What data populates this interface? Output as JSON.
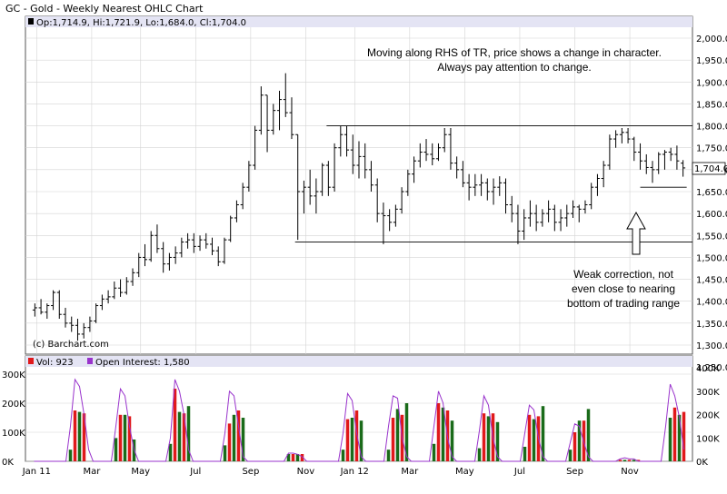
{
  "header": {
    "title": "GC - Gold - Weekly Nearest OHLC Chart"
  },
  "price_panel": {
    "ohlc_label": "Op:1,714.9, Hi:1,721.9, Lo:1,684.0, Cl:1,704.0",
    "last_price": "1,704.0",
    "copyright": "(c) Barchart.com",
    "y_ticks": [
      "2,000.0",
      "1,950.0",
      "1,900.0",
      "1,850.0",
      "1,800.0",
      "1,750.0",
      "1,700.0",
      "1,650.0",
      "1,600.0",
      "1,550.0",
      "1,500.0",
      "1,450.0",
      "1,400.0",
      "1,350.0",
      "1,300.0",
      "1,250.0"
    ]
  },
  "volume_panel": {
    "vol_label": "Vol: 923",
    "oi_label": "Open Interest: 1,580",
    "left_ticks": [
      "300K",
      "200K",
      "100K",
      "0K"
    ],
    "right_ticks": [
      "400K",
      "300K",
      "200K",
      "100K",
      "0K"
    ]
  },
  "x_ticks": [
    "Jan 11",
    "Mar",
    "May",
    "Jul",
    "Sep",
    "Nov",
    "Jan 12",
    "Mar",
    "May",
    "Jul",
    "Sep",
    "Nov"
  ],
  "annotations": {
    "top_line1": "Moving along RHS of TR, price shows a change in character.",
    "top_line2": "Always pay attention to change.",
    "bottom_line1": "Weak correction, not",
    "bottom_line2": "even close to nearing",
    "bottom_line3": "bottom of trading range"
  },
  "colors": {
    "up_volume": "#1a6b1a",
    "down_volume": "#e0191b",
    "open_interest": "#9933cc",
    "panel_header": "#e4e4f4",
    "grid": "#d4d4d4"
  },
  "chart_data": [
    {
      "type": "ohlc",
      "title": "GC - Gold - Weekly Nearest OHLC Chart",
      "ylim": [
        1250,
        2050
      ],
      "x_labels": [
        "Jan 11",
        "Mar",
        "May",
        "Jul",
        "Sep",
        "Nov",
        "Jan 12",
        "Mar",
        "May",
        "Jul",
        "Sep",
        "Nov"
      ],
      "ohlc": [
        [
          1380,
          1395,
          1365,
          1385
        ],
        [
          1385,
          1405,
          1370,
          1375
        ],
        [
          1375,
          1395,
          1360,
          1390
        ],
        [
          1390,
          1425,
          1380,
          1420
        ],
        [
          1420,
          1425,
          1360,
          1370
        ],
        [
          1370,
          1385,
          1340,
          1350
        ],
        [
          1350,
          1365,
          1330,
          1345
        ],
        [
          1345,
          1360,
          1310,
          1325
        ],
        [
          1325,
          1350,
          1315,
          1340
        ],
        [
          1340,
          1365,
          1330,
          1355
        ],
        [
          1355,
          1395,
          1350,
          1390
        ],
        [
          1390,
          1415,
          1380,
          1405
        ],
        [
          1405,
          1425,
          1395,
          1410
        ],
        [
          1410,
          1445,
          1405,
          1430
        ],
        [
          1430,
          1450,
          1410,
          1420
        ],
        [
          1420,
          1455,
          1415,
          1445
        ],
        [
          1445,
          1475,
          1435,
          1465
        ],
        [
          1465,
          1510,
          1455,
          1500
        ],
        [
          1500,
          1530,
          1480,
          1495
        ],
        [
          1495,
          1560,
          1490,
          1550
        ],
        [
          1550,
          1575,
          1510,
          1520
        ],
        [
          1520,
          1535,
          1465,
          1485
        ],
        [
          1485,
          1510,
          1470,
          1500
        ],
        [
          1500,
          1525,
          1485,
          1510
        ],
        [
          1510,
          1545,
          1500,
          1535
        ],
        [
          1535,
          1555,
          1520,
          1540
        ],
        [
          1540,
          1555,
          1510,
          1525
        ],
        [
          1525,
          1550,
          1515,
          1540
        ],
        [
          1540,
          1555,
          1520,
          1530
        ],
        [
          1530,
          1545,
          1505,
          1515
        ],
        [
          1515,
          1525,
          1480,
          1490
        ],
        [
          1490,
          1545,
          1485,
          1540
        ],
        [
          1540,
          1595,
          1535,
          1590
        ],
        [
          1590,
          1630,
          1580,
          1620
        ],
        [
          1620,
          1670,
          1610,
          1660
        ],
        [
          1660,
          1720,
          1650,
          1710
        ],
        [
          1710,
          1800,
          1700,
          1790
        ],
        [
          1790,
          1890,
          1780,
          1870
        ],
        [
          1870,
          1870,
          1740,
          1790
        ],
        [
          1790,
          1850,
          1780,
          1835
        ],
        [
          1835,
          1880,
          1790,
          1860
        ],
        [
          1860,
          1920,
          1820,
          1830
        ],
        [
          1830,
          1865,
          1770,
          1780
        ],
        [
          1780,
          1780,
          1540,
          1650
        ],
        [
          1650,
          1675,
          1600,
          1660
        ],
        [
          1660,
          1700,
          1620,
          1640
        ],
        [
          1640,
          1680,
          1600,
          1650
        ],
        [
          1650,
          1715,
          1640,
          1710
        ],
        [
          1710,
          1720,
          1640,
          1660
        ],
        [
          1660,
          1760,
          1650,
          1750
        ],
        [
          1750,
          1800,
          1730,
          1780
        ],
        [
          1780,
          1800,
          1730,
          1745
        ],
        [
          1745,
          1780,
          1690,
          1710
        ],
        [
          1710,
          1765,
          1680,
          1730
        ],
        [
          1730,
          1760,
          1680,
          1700
        ],
        [
          1700,
          1720,
          1650,
          1665
        ],
        [
          1665,
          1680,
          1580,
          1600
        ],
        [
          1600,
          1625,
          1530,
          1595
        ],
        [
          1595,
          1610,
          1560,
          1580
        ],
        [
          1580,
          1620,
          1570,
          1610
        ],
        [
          1610,
          1660,
          1600,
          1650
        ],
        [
          1650,
          1700,
          1640,
          1690
        ],
        [
          1690,
          1730,
          1670,
          1720
        ],
        [
          1720,
          1760,
          1705,
          1740
        ],
        [
          1740,
          1770,
          1720,
          1735
        ],
        [
          1735,
          1760,
          1710,
          1725
        ],
        [
          1725,
          1760,
          1720,
          1750
        ],
        [
          1750,
          1795,
          1740,
          1780
        ],
        [
          1780,
          1795,
          1700,
          1715
        ],
        [
          1715,
          1730,
          1680,
          1700
        ],
        [
          1700,
          1720,
          1660,
          1670
        ],
        [
          1670,
          1690,
          1630,
          1660
        ],
        [
          1660,
          1690,
          1640,
          1665
        ],
        [
          1665,
          1690,
          1640,
          1670
        ],
        [
          1670,
          1680,
          1630,
          1650
        ],
        [
          1650,
          1680,
          1620,
          1660
        ],
        [
          1660,
          1685,
          1640,
          1670
        ],
        [
          1670,
          1680,
          1600,
          1620
        ],
        [
          1620,
          1640,
          1580,
          1600
        ],
        [
          1600,
          1620,
          1530,
          1560
        ],
        [
          1560,
          1610,
          1540,
          1590
        ],
        [
          1590,
          1630,
          1570,
          1600
        ],
        [
          1600,
          1620,
          1560,
          1580
        ],
        [
          1580,
          1610,
          1570,
          1600
        ],
        [
          1600,
          1630,
          1580,
          1610
        ],
        [
          1610,
          1620,
          1560,
          1580
        ],
        [
          1580,
          1610,
          1560,
          1590
        ],
        [
          1590,
          1620,
          1570,
          1600
        ],
        [
          1600,
          1630,
          1590,
          1615
        ],
        [
          1615,
          1620,
          1580,
          1610
        ],
        [
          1610,
          1630,
          1600,
          1620
        ],
        [
          1620,
          1670,
          1610,
          1660
        ],
        [
          1660,
          1690,
          1640,
          1680
        ],
        [
          1680,
          1720,
          1660,
          1710
        ],
        [
          1710,
          1780,
          1700,
          1770
        ],
        [
          1770,
          1790,
          1750,
          1780
        ],
        [
          1780,
          1795,
          1760,
          1785
        ],
        [
          1785,
          1795,
          1760,
          1770
        ],
        [
          1770,
          1775,
          1720,
          1740
        ],
        [
          1740,
          1760,
          1700,
          1720
        ],
        [
          1720,
          1735,
          1690,
          1705
        ],
        [
          1705,
          1720,
          1670,
          1700
        ],
        [
          1700,
          1740,
          1690,
          1735
        ],
        [
          1735,
          1745,
          1700,
          1740
        ],
        [
          1740,
          1750,
          1720,
          1735
        ],
        [
          1735,
          1755,
          1700,
          1720
        ],
        [
          1714.9,
          1721.9,
          1684,
          1704
        ]
      ],
      "reference_lines": {
        "trading_range_top": 1800,
        "trading_range_bottom": 1535,
        "recent_support": 1660
      },
      "annotations": [
        "Moving along RHS of TR, price shows a change in character.",
        "Always pay attention to change.",
        "Weak correction, not even close to nearing bottom of trading range"
      ]
    },
    {
      "type": "bar",
      "title": "Volume / Open Interest",
      "ylim_volume": [
        0,
        300000
      ],
      "ylim_open_interest": [
        0,
        400000
      ],
      "series": [
        {
          "name": "Vol",
          "values": [
            0,
            0,
            0,
            0,
            0,
            0,
            0,
            0,
            40000,
            175000,
            170000,
            165000,
            0,
            0,
            0,
            0,
            0,
            0,
            80000,
            160000,
            160000,
            155000,
            75000,
            0,
            0,
            0,
            0,
            0,
            0,
            0,
            60000,
            250000,
            170000,
            165000,
            190000,
            0,
            0,
            0,
            0,
            0,
            0,
            0,
            55000,
            130000,
            160000,
            175000,
            150000,
            0,
            0,
            0,
            0,
            0,
            0,
            0,
            0,
            0,
            25000,
            25000,
            25000,
            25000,
            0,
            0,
            0,
            0,
            0,
            0,
            0,
            0,
            40000,
            145000,
            150000,
            175000,
            140000,
            0,
            0,
            0,
            0,
            0,
            40000,
            150000,
            180000,
            160000,
            200000,
            0,
            0,
            0,
            0,
            0,
            60000,
            200000,
            185000,
            175000,
            140000,
            0,
            0,
            0,
            0,
            0,
            45000,
            165000,
            155000,
            165000,
            135000,
            0,
            0,
            0,
            0,
            0,
            50000,
            160000,
            145000,
            155000,
            190000,
            0,
            0,
            0,
            0,
            0,
            40000,
            100000,
            140000,
            140000,
            180000,
            0,
            0,
            0,
            0,
            0,
            0,
            5000,
            5000,
            5000,
            5000,
            5000,
            0,
            0,
            0,
            0,
            0,
            0,
            150000,
            185000,
            160000,
            170000
          ]
        },
        {
          "name": "Open Interest",
          "values": [
            0,
            0,
            0,
            0,
            0,
            0,
            0,
            0,
            150000,
            350000,
            320000,
            200000,
            50000,
            0,
            0,
            0,
            0,
            0,
            150000,
            310000,
            280000,
            150000,
            50000,
            0,
            0,
            0,
            0,
            0,
            0,
            0,
            100000,
            350000,
            300000,
            200000,
            50000,
            0,
            0,
            0,
            0,
            0,
            0,
            0,
            120000,
            300000,
            280000,
            150000,
            20000,
            0,
            0,
            0,
            0,
            0,
            0,
            0,
            0,
            0,
            35000,
            35000,
            30000,
            20000,
            0,
            0,
            0,
            0,
            0,
            0,
            0,
            0,
            120000,
            290000,
            260000,
            120000,
            20000,
            0,
            0,
            0,
            0,
            0,
            150000,
            280000,
            270000,
            100000,
            20000,
            0,
            0,
            0,
            0,
            0,
            150000,
            300000,
            250000,
            100000,
            20000,
            0,
            0,
            0,
            0,
            0,
            130000,
            280000,
            240000,
            100000,
            20000,
            0,
            0,
            0,
            0,
            0,
            120000,
            240000,
            220000,
            100000,
            20000,
            0,
            0,
            0,
            0,
            0,
            80000,
            160000,
            150000,
            80000,
            20000,
            0,
            0,
            0,
            0,
            0,
            0,
            10000,
            15000,
            10000,
            10000,
            0,
            0,
            0,
            0,
            0,
            0,
            150000,
            330000,
            280000,
            190000,
            50000
          ]
        }
      ]
    }
  ]
}
